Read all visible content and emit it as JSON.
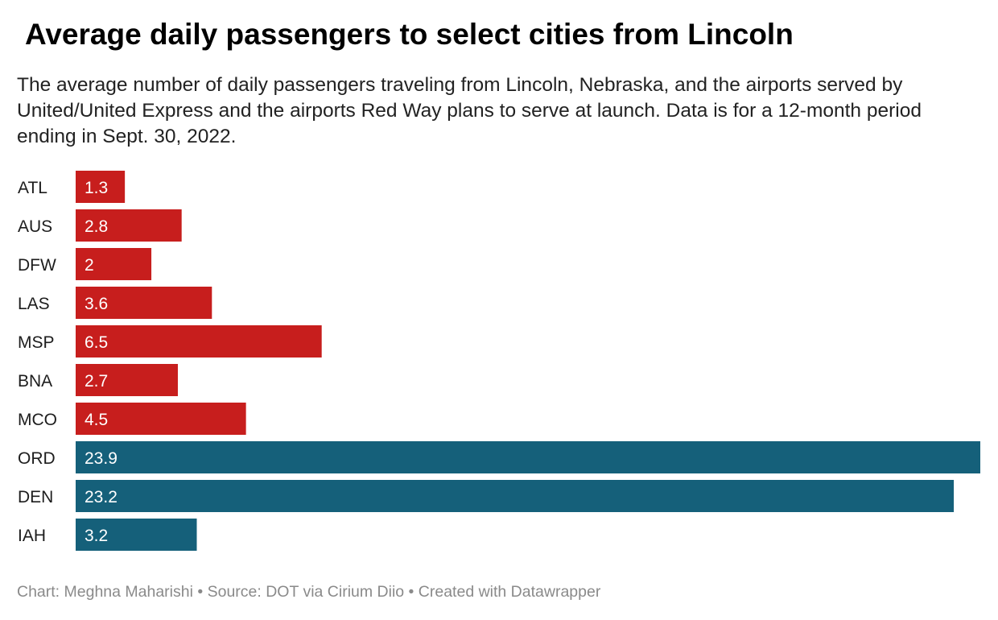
{
  "title": "Average daily passengers to select cities from Lincoln",
  "subtitle": "The average number of daily passengers traveling from Lincoln, Nebraska, and the airports served by United/United Express and the airports Red Way plans to serve at launch. Data is for a 12-month period ending in Sept. 30, 2022.",
  "footer": "Chart: Meghna Maharishi • Source: DOT via Cirium Diio • Created with Datawrapper",
  "colors": {
    "red_way": "#c71e1d",
    "united": "#15607a"
  },
  "chart_data": {
    "type": "bar",
    "orientation": "horizontal",
    "title": "Average daily passengers to select cities from Lincoln",
    "xlabel": "",
    "ylabel": "",
    "xlim": [
      0,
      23.9
    ],
    "grid": false,
    "categories": [
      "ATL",
      "AUS",
      "DFW",
      "LAS",
      "MSP",
      "BNA",
      "MCO",
      "ORD",
      "DEN",
      "IAH"
    ],
    "values": [
      1.3,
      2.8,
      2,
      3.6,
      6.5,
      2.7,
      4.5,
      23.9,
      23.2,
      3.2
    ],
    "labels": [
      "1.3",
      "2.8",
      "2",
      "3.6",
      "6.5",
      "2.7",
      "4.5",
      "23.9",
      "23.2",
      "3.2"
    ],
    "groups": [
      "red_way",
      "red_way",
      "red_way",
      "red_way",
      "red_way",
      "red_way",
      "red_way",
      "united",
      "united",
      "united"
    ]
  }
}
